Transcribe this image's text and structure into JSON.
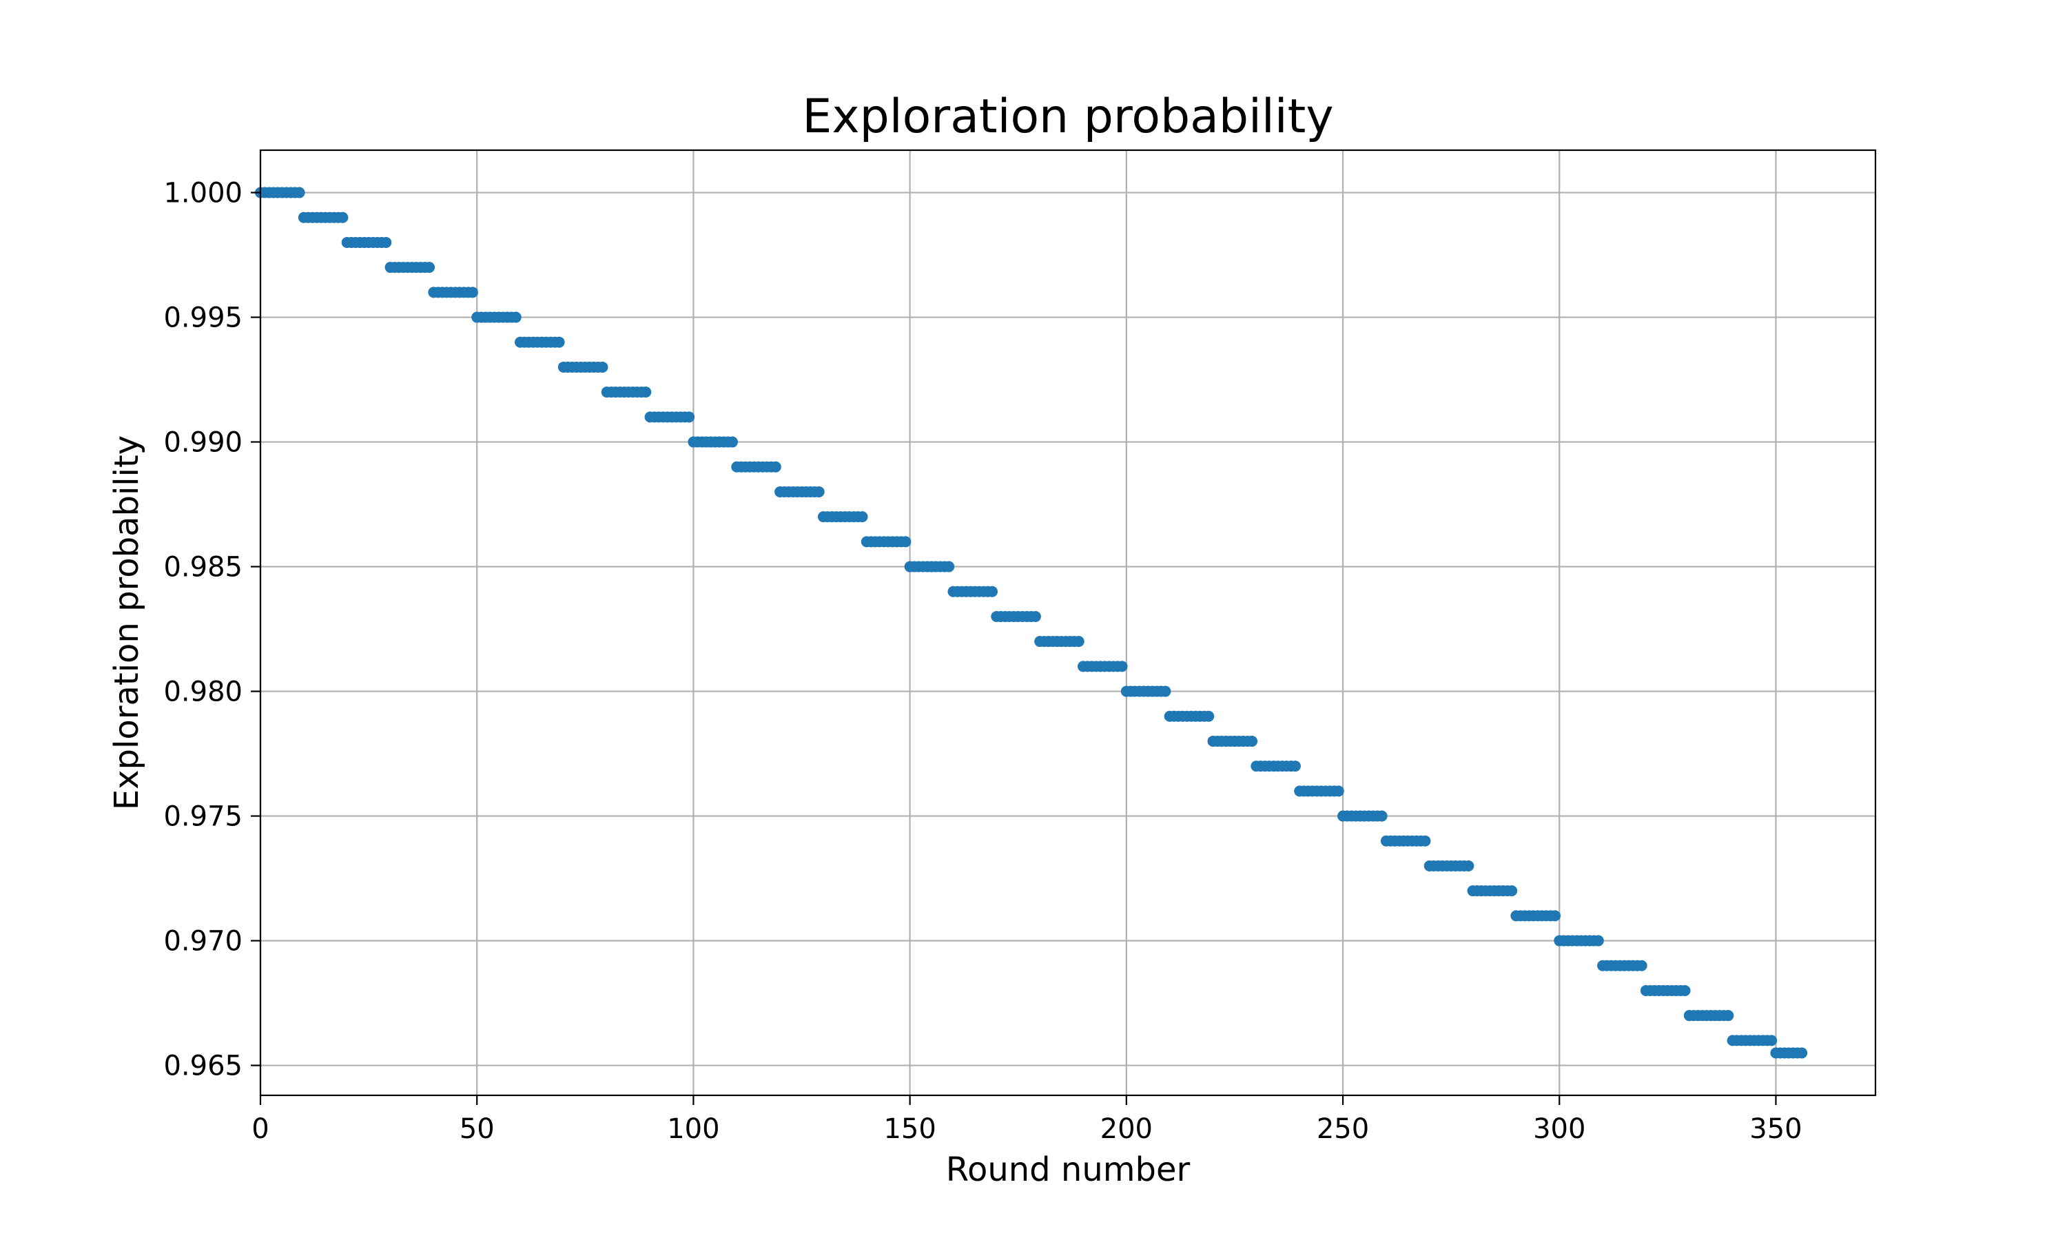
{
  "chart_data": {
    "type": "scatter",
    "title": "Exploration probability",
    "xlabel": "Round number",
    "ylabel": "Exploration probability",
    "xlim": [
      0,
      373
    ],
    "ylim": [
      0.9638,
      1.0017
    ],
    "xticks": [
      0,
      50,
      100,
      150,
      200,
      250,
      300,
      350
    ],
    "xtick_labels": [
      "0",
      "50",
      "100",
      "150",
      "200",
      "250",
      "300",
      "350"
    ],
    "yticks": [
      0.965,
      0.97,
      0.975,
      0.98,
      0.985,
      0.99,
      0.995,
      1.0
    ],
    "ytick_labels": [
      "0.965",
      "0.970",
      "0.975",
      "0.980",
      "0.985",
      "0.990",
      "0.995",
      "1.000"
    ],
    "grid": true,
    "marker_color": "#1f77b4",
    "series": [
      {
        "x_range": [
          0,
          356
        ],
        "step_length": 10,
        "step_decay_factor": 0.999,
        "step_values": [
          1.0,
          0.999,
          0.998,
          0.997,
          0.996,
          0.995,
          0.994,
          0.993,
          0.992,
          0.991,
          0.99,
          0.989,
          0.988,
          0.987,
          0.986,
          0.985,
          0.984,
          0.983,
          0.982,
          0.981,
          0.98,
          0.979,
          0.978,
          0.977,
          0.976,
          0.975,
          0.974,
          0.973,
          0.972,
          0.971,
          0.97,
          0.969,
          0.968,
          0.967,
          0.966,
          0.9655
        ]
      }
    ]
  }
}
